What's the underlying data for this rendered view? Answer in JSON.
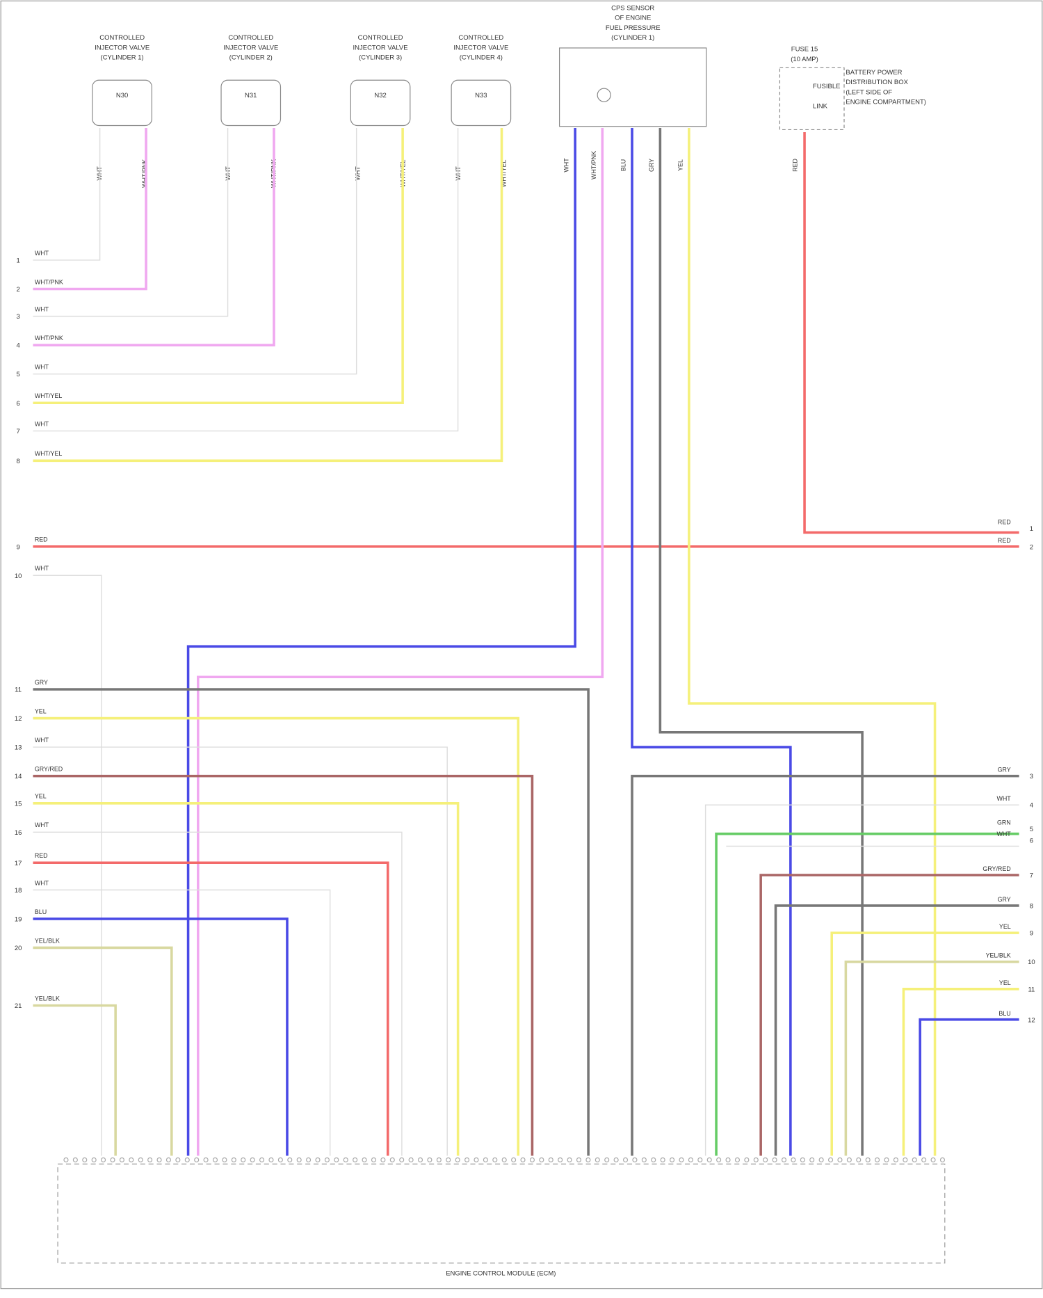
{
  "injectors": [
    {
      "label": [
        "CONTROLLED",
        "INJECTOR VALVE",
        "(CYLINDER 1)"
      ],
      "part": "N30",
      "wires": [
        "WHT",
        "WHT/PNK"
      ]
    },
    {
      "label": [
        "CONTROLLED",
        "INJECTOR VALVE",
        "(CYLINDER 2)"
      ],
      "part": "N31",
      "wires": [
        "WHT",
        "WHT/PNK"
      ]
    },
    {
      "label": [
        "CONTROLLED",
        "INJECTOR VALVE",
        "(CYLINDER 3)"
      ],
      "part": "N32",
      "wires": [
        "WHT",
        "WHT/YEL"
      ]
    },
    {
      "label": [
        "CONTROLLED",
        "INJECTOR VALVE",
        "(CYLINDER 4)"
      ],
      "part": "N33",
      "wires": [
        "WHT",
        "WHT/YEL"
      ]
    }
  ],
  "sensor": {
    "label": [
      "CPS SENSOR",
      "OF ENGINE",
      "FUEL PRESSURE",
      "(CYLINDER 1)"
    ],
    "wires": [
      "WHT",
      "WHT/PNK",
      "BLU",
      "GRY",
      "YEL"
    ]
  },
  "fuse": {
    "label": [
      "FUSE 15",
      "(10 AMP)"
    ],
    "note": [
      "BATTERY POWER",
      "DISTRIBUTION BOX",
      "(LEFT SIDE OF",
      "ENGINE COMPARTMENT)"
    ],
    "parts": [
      "FUSIBLE",
      "LINK"
    ],
    "wire": "RED"
  },
  "left_rows": [
    {
      "num": "1",
      "label": "WHT"
    },
    {
      "num": "2",
      "label": "WHT/PNK"
    },
    {
      "num": "3",
      "label": "WHT"
    },
    {
      "num": "4",
      "label": "WHT/PNK"
    },
    {
      "num": "5",
      "label": "WHT"
    },
    {
      "num": "6",
      "label": "WHT/YEL"
    },
    {
      "num": "7",
      "label": "WHT"
    },
    {
      "num": "8",
      "label": "WHT/YEL"
    },
    {
      "num": "9",
      "label": "RED"
    },
    {
      "num": "10",
      "label": "WHT"
    },
    {
      "num": "11",
      "label": "GRY"
    },
    {
      "num": "12",
      "label": "YEL"
    },
    {
      "num": "13",
      "label": "WHT"
    },
    {
      "num": "14",
      "label": "GRY/RED"
    },
    {
      "num": "15",
      "label": "YEL"
    },
    {
      "num": "16",
      "label": "WHT"
    },
    {
      "num": "17",
      "label": "RED"
    },
    {
      "num": "18",
      "label": "WHT"
    },
    {
      "num": "19",
      "label": "BLU"
    },
    {
      "num": "20",
      "label": "YEL/BLK"
    },
    {
      "num": "21",
      "label": "YEL/BLK"
    }
  ],
  "right_rows": [
    {
      "num": "1",
      "label": "RED"
    },
    {
      "num": "2",
      "label": "RED"
    },
    {
      "num": "3",
      "label": "GRY"
    },
    {
      "num": "4",
      "label": "WHT"
    },
    {
      "num": "5",
      "label": "GRN"
    },
    {
      "num": "6",
      "label": "WHT"
    },
    {
      "num": "7",
      "label": "GRY/RED"
    },
    {
      "num": "8",
      "label": "GRY"
    },
    {
      "num": "9",
      "label": "YEL"
    },
    {
      "num": "10",
      "label": "YEL/BLK"
    },
    {
      "num": "11",
      "label": "YEL"
    },
    {
      "num": "12",
      "label": "BLU"
    }
  ],
  "module": {
    "label": "ENGINE CONTROL MODULE (ECM)"
  }
}
